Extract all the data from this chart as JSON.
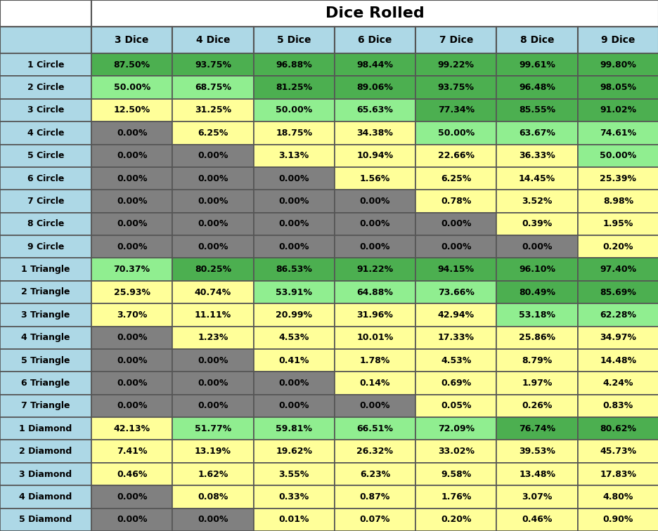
{
  "title": "Dice Rolled",
  "col_headers": [
    "",
    "3 Dice",
    "4 Dice",
    "5 Dice",
    "6 Dice",
    "7 Dice",
    "8 Dice",
    "9 Dice"
  ],
  "rows": [
    {
      "label": "1 Circle",
      "values": [
        87.5,
        93.75,
        96.88,
        98.44,
        99.22,
        99.61,
        99.8
      ]
    },
    {
      "label": "2 Circle",
      "values": [
        50.0,
        68.75,
        81.25,
        89.06,
        93.75,
        96.48,
        98.05
      ]
    },
    {
      "label": "3 Circle",
      "values": [
        12.5,
        31.25,
        50.0,
        65.63,
        77.34,
        85.55,
        91.02
      ]
    },
    {
      "label": "4 Circle",
      "values": [
        0.0,
        6.25,
        18.75,
        34.38,
        50.0,
        63.67,
        74.61
      ]
    },
    {
      "label": "5 Circle",
      "values": [
        0.0,
        0.0,
        3.13,
        10.94,
        22.66,
        36.33,
        50.0
      ]
    },
    {
      "label": "6 Circle",
      "values": [
        0.0,
        0.0,
        0.0,
        1.56,
        6.25,
        14.45,
        25.39
      ]
    },
    {
      "label": "7 Circle",
      "values": [
        0.0,
        0.0,
        0.0,
        0.0,
        0.78,
        3.52,
        8.98
      ]
    },
    {
      "label": "8 Circle",
      "values": [
        0.0,
        0.0,
        0.0,
        0.0,
        0.0,
        0.39,
        1.95
      ]
    },
    {
      "label": "9 Circle",
      "values": [
        0.0,
        0.0,
        0.0,
        0.0,
        0.0,
        0.0,
        0.2
      ]
    },
    {
      "label": "1 Triangle",
      "values": [
        70.37,
        80.25,
        86.53,
        91.22,
        94.15,
        96.1,
        97.4
      ]
    },
    {
      "label": "2 Triangle",
      "values": [
        25.93,
        40.74,
        53.91,
        64.88,
        73.66,
        80.49,
        85.69
      ]
    },
    {
      "label": "3 Triangle",
      "values": [
        3.7,
        11.11,
        20.99,
        31.96,
        42.94,
        53.18,
        62.28
      ]
    },
    {
      "label": "4 Triangle",
      "values": [
        0.0,
        1.23,
        4.53,
        10.01,
        17.33,
        25.86,
        34.97
      ]
    },
    {
      "label": "5 Triangle",
      "values": [
        0.0,
        0.0,
        0.41,
        1.78,
        4.53,
        8.79,
        14.48
      ]
    },
    {
      "label": "6 Triangle",
      "values": [
        0.0,
        0.0,
        0.0,
        0.14,
        0.69,
        1.97,
        4.24
      ]
    },
    {
      "label": "7 Triangle",
      "values": [
        0.0,
        0.0,
        0.0,
        0.0,
        0.05,
        0.26,
        0.83
      ]
    },
    {
      "label": "1 Diamond",
      "values": [
        42.13,
        51.77,
        59.81,
        66.51,
        72.09,
        76.74,
        80.62
      ]
    },
    {
      "label": "2 Diamond",
      "values": [
        7.41,
        13.19,
        19.62,
        26.32,
        33.02,
        39.53,
        45.73
      ]
    },
    {
      "label": "3 Diamond",
      "values": [
        0.46,
        1.62,
        3.55,
        6.23,
        9.58,
        13.48,
        17.83
      ]
    },
    {
      "label": "4 Diamond",
      "values": [
        0.0,
        0.08,
        0.33,
        0.87,
        1.76,
        3.07,
        4.8
      ]
    },
    {
      "label": "5 Diamond",
      "values": [
        0.0,
        0.0,
        0.01,
        0.07,
        0.2,
        0.46,
        0.9
      ]
    }
  ],
  "header_bg": "#add8e6",
  "row_label_bg": "#add8e6",
  "title_bg": "#ffffff",
  "color_dark_green": "#4CAF50",
  "color_mid_green": "#90EE90",
  "color_light_green": "#c8e6c9",
  "color_yellow": "#FFFF99",
  "color_grey": "#808080",
  "figwidth": 9.37,
  "figheight": 7.56,
  "dpi": 100
}
